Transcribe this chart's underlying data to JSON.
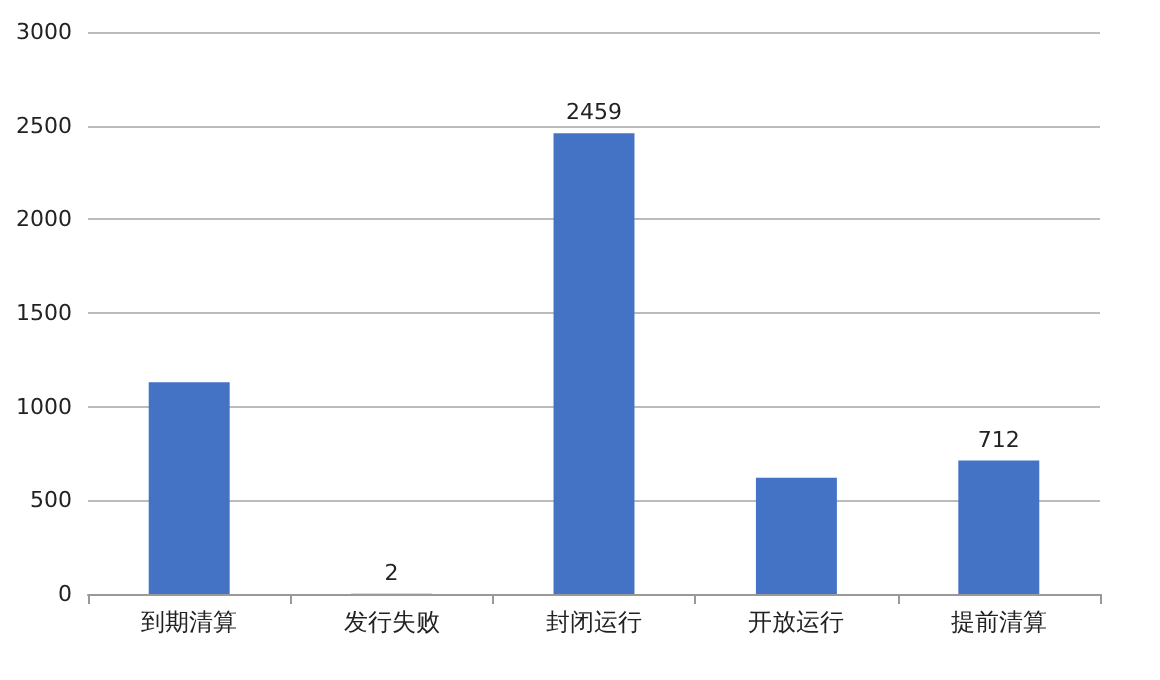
{
  "chart_data": {
    "type": "bar",
    "categories": [
      "到期清算",
      "发行失败",
      "封闭运行",
      "开放运行",
      "提前清算"
    ],
    "values": [
      1130,
      2,
      2459,
      620,
      712
    ],
    "value_labels": [
      null,
      "2",
      "2459",
      null,
      "712"
    ],
    "color": "#4472c4",
    "ylim": [
      0,
      3000
    ],
    "yticks": [
      0,
      500,
      1000,
      1500,
      2000,
      2500,
      3000
    ],
    "grid": "y"
  }
}
